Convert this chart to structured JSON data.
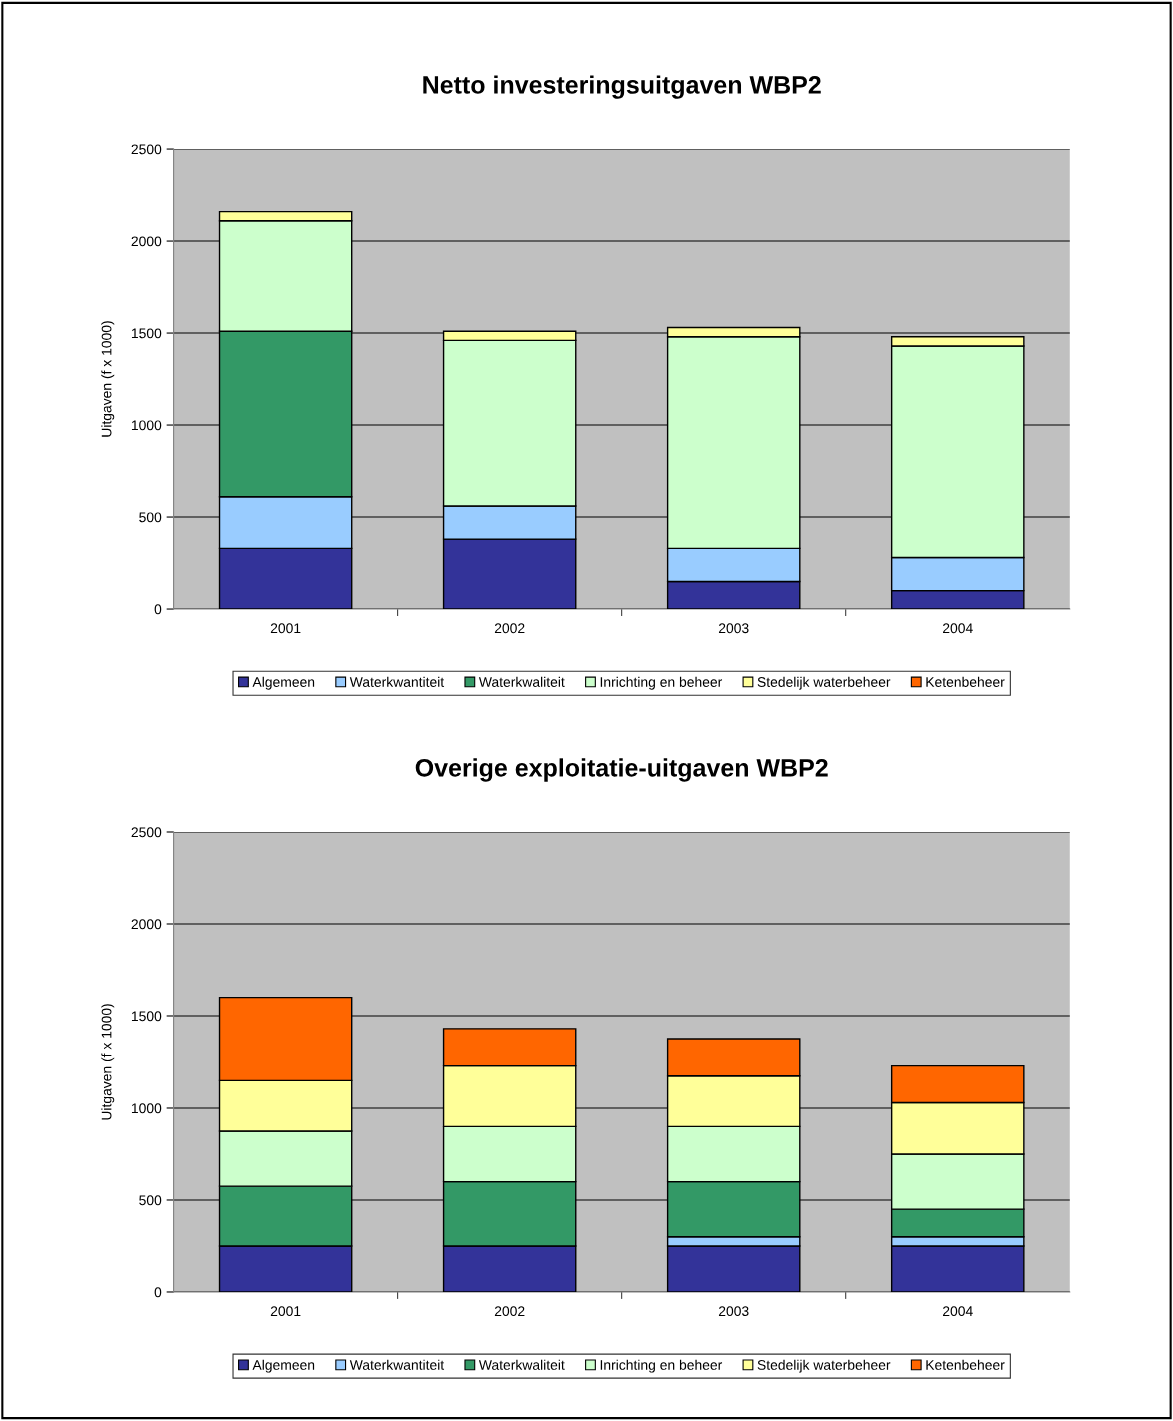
{
  "chart_data": [
    {
      "type": "bar",
      "title": "Netto investeringsuitgaven WBP2",
      "ylabel": "Uitgaven (f x 1000)",
      "categories": [
        "2001",
        "2002",
        "2003",
        "2004"
      ],
      "stacked": true,
      "ylim": [
        0,
        2500
      ],
      "yticks": [
        0,
        500,
        1000,
        1500,
        2000,
        2500
      ],
      "grid": "y",
      "legend": "bottom",
      "series": [
        {
          "name": "Algemeen",
          "color": "#333399",
          "values": [
            330,
            380,
            150,
            100
          ]
        },
        {
          "name": "Waterkwantiteit",
          "color": "#99ccff",
          "values": [
            280,
            180,
            180,
            180
          ]
        },
        {
          "name": "Waterkwaliteit",
          "color": "#339966",
          "values": [
            900,
            null,
            null,
            null
          ]
        },
        {
          "name": "Inrichting en beheer",
          "color": "#ccffcc",
          "values": [
            600,
            900,
            1150,
            1150
          ]
        },
        {
          "name": "Stedelijk waterbeheer",
          "color": "#ffff99",
          "values": [
            50,
            50,
            50,
            50
          ]
        },
        {
          "name": "Ketenbeheer",
          "color": "#ff6600",
          "values": [
            null,
            null,
            null,
            null
          ]
        }
      ]
    },
    {
      "type": "bar",
      "title": "Overige exploitatie-uitgaven WBP2",
      "ylabel": "Uitgaven (f x 1000)",
      "categories": [
        "2001",
        "2002",
        "2003",
        "2004"
      ],
      "stacked": true,
      "ylim": [
        0,
        2500
      ],
      "yticks": [
        0,
        500,
        1000,
        1500,
        2000,
        2500
      ],
      "grid": "y",
      "legend": "bottom",
      "series": [
        {
          "name": "Algemeen",
          "color": "#333399",
          "values": [
            250,
            250,
            250,
            250
          ]
        },
        {
          "name": "Waterkwantiteit",
          "color": "#99ccff",
          "values": [
            null,
            null,
            50,
            50
          ]
        },
        {
          "name": "Waterkwaliteit",
          "color": "#339966",
          "values": [
            325,
            350,
            300,
            150
          ]
        },
        {
          "name": "Inrichting en beheer",
          "color": "#ccffcc",
          "values": [
            300,
            300,
            300,
            300
          ]
        },
        {
          "name": "Stedelijk waterbeheer",
          "color": "#ffff99",
          "values": [
            275,
            330,
            275,
            280
          ]
        },
        {
          "name": "Ketenbeheer",
          "color": "#ff6600",
          "values": [
            450,
            200,
            200,
            200
          ]
        }
      ]
    }
  ]
}
